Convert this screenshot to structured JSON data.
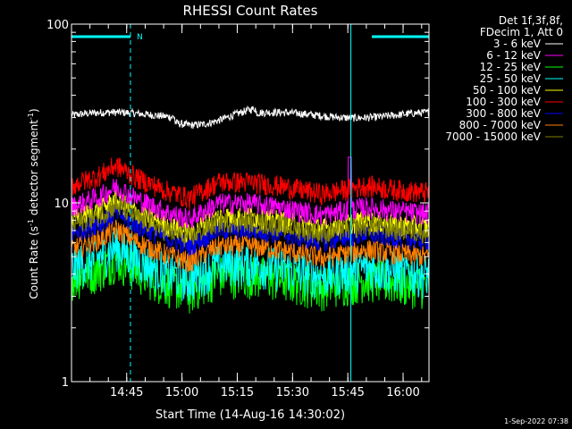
{
  "chart_data": {
    "type": "line",
    "title": "RHESSI Count Rates",
    "xlabel": "Start Time (14-Aug-16 14:30:02)",
    "ylabel_main": "Count Rate (s",
    "ylabel_sup1": "-1",
    "ylabel_mid": " detector segment",
    "ylabel_sup2": "-1",
    "ylabel_end": ")",
    "y_scale": "log",
    "ylim": [
      1,
      100
    ],
    "y_ticks": [
      {
        "value": 1,
        "label": "1"
      },
      {
        "value": 10,
        "label": "10"
      },
      {
        "value": 100,
        "label": "100"
      }
    ],
    "xlim_minutes": [
      0,
      97
    ],
    "x_ticks": [
      {
        "minute": 14.97,
        "label": "14:45"
      },
      {
        "minute": 29.97,
        "label": "15:00"
      },
      {
        "minute": 44.97,
        "label": "15:15"
      },
      {
        "minute": 59.97,
        "label": "15:30"
      },
      {
        "minute": 74.97,
        "label": "15:45"
      },
      {
        "minute": 89.97,
        "label": "16:00"
      }
    ],
    "legend_header": [
      "Det 1f,3f,8f,",
      "FDecim 1, Att 0"
    ],
    "legend_position": "outside-top-right",
    "series": [
      {
        "name": "3 - 6 keV",
        "color": "#ffffff",
        "base": 31
      },
      {
        "name": "6 - 12 keV",
        "color": "#ff00ff",
        "base": 9.5
      },
      {
        "name": "12 - 25 keV",
        "color": "#00ff00",
        "base": 3.8
      },
      {
        "name": "25 - 50 keV",
        "color": "#00ffff",
        "base": 4.4
      },
      {
        "name": "50 - 100 keV",
        "color": "#ffff00",
        "base": 8.0
      },
      {
        "name": "100 - 300 keV",
        "color": "#ff0000",
        "base": 12.5
      },
      {
        "name": "300 - 800 keV",
        "color": "#0000ff",
        "base": 6.8
      },
      {
        "name": "800 - 7000 keV",
        "color": "#ff8000",
        "base": 5.5
      },
      {
        "name": "7000 - 15000 keV",
        "color": "#808000",
        "base": 7.5
      }
    ],
    "profile_x_minutes": [
      0,
      8,
      12,
      18,
      25,
      32,
      40,
      48,
      56,
      62,
      68,
      74,
      80,
      88,
      95
    ],
    "profile_factor": [
      1.0,
      1.15,
      1.3,
      1.1,
      0.95,
      0.85,
      1.05,
      1.05,
      1.0,
      0.95,
      0.9,
      0.95,
      1.0,
      0.95,
      0.92
    ],
    "bars_top": [
      {
        "x0": 0,
        "x1": 16,
        "label": "N"
      },
      {
        "x0": 81.5,
        "x1": 97,
        "label": ""
      }
    ],
    "vlines_solid_minutes": [
      0,
      75.8
    ],
    "vlines_dashed_minutes": [
      16,
      97
    ],
    "mark_color": "#00ffff"
  },
  "footer": {
    "timestamp": "1-Sep-2022 07:38"
  }
}
